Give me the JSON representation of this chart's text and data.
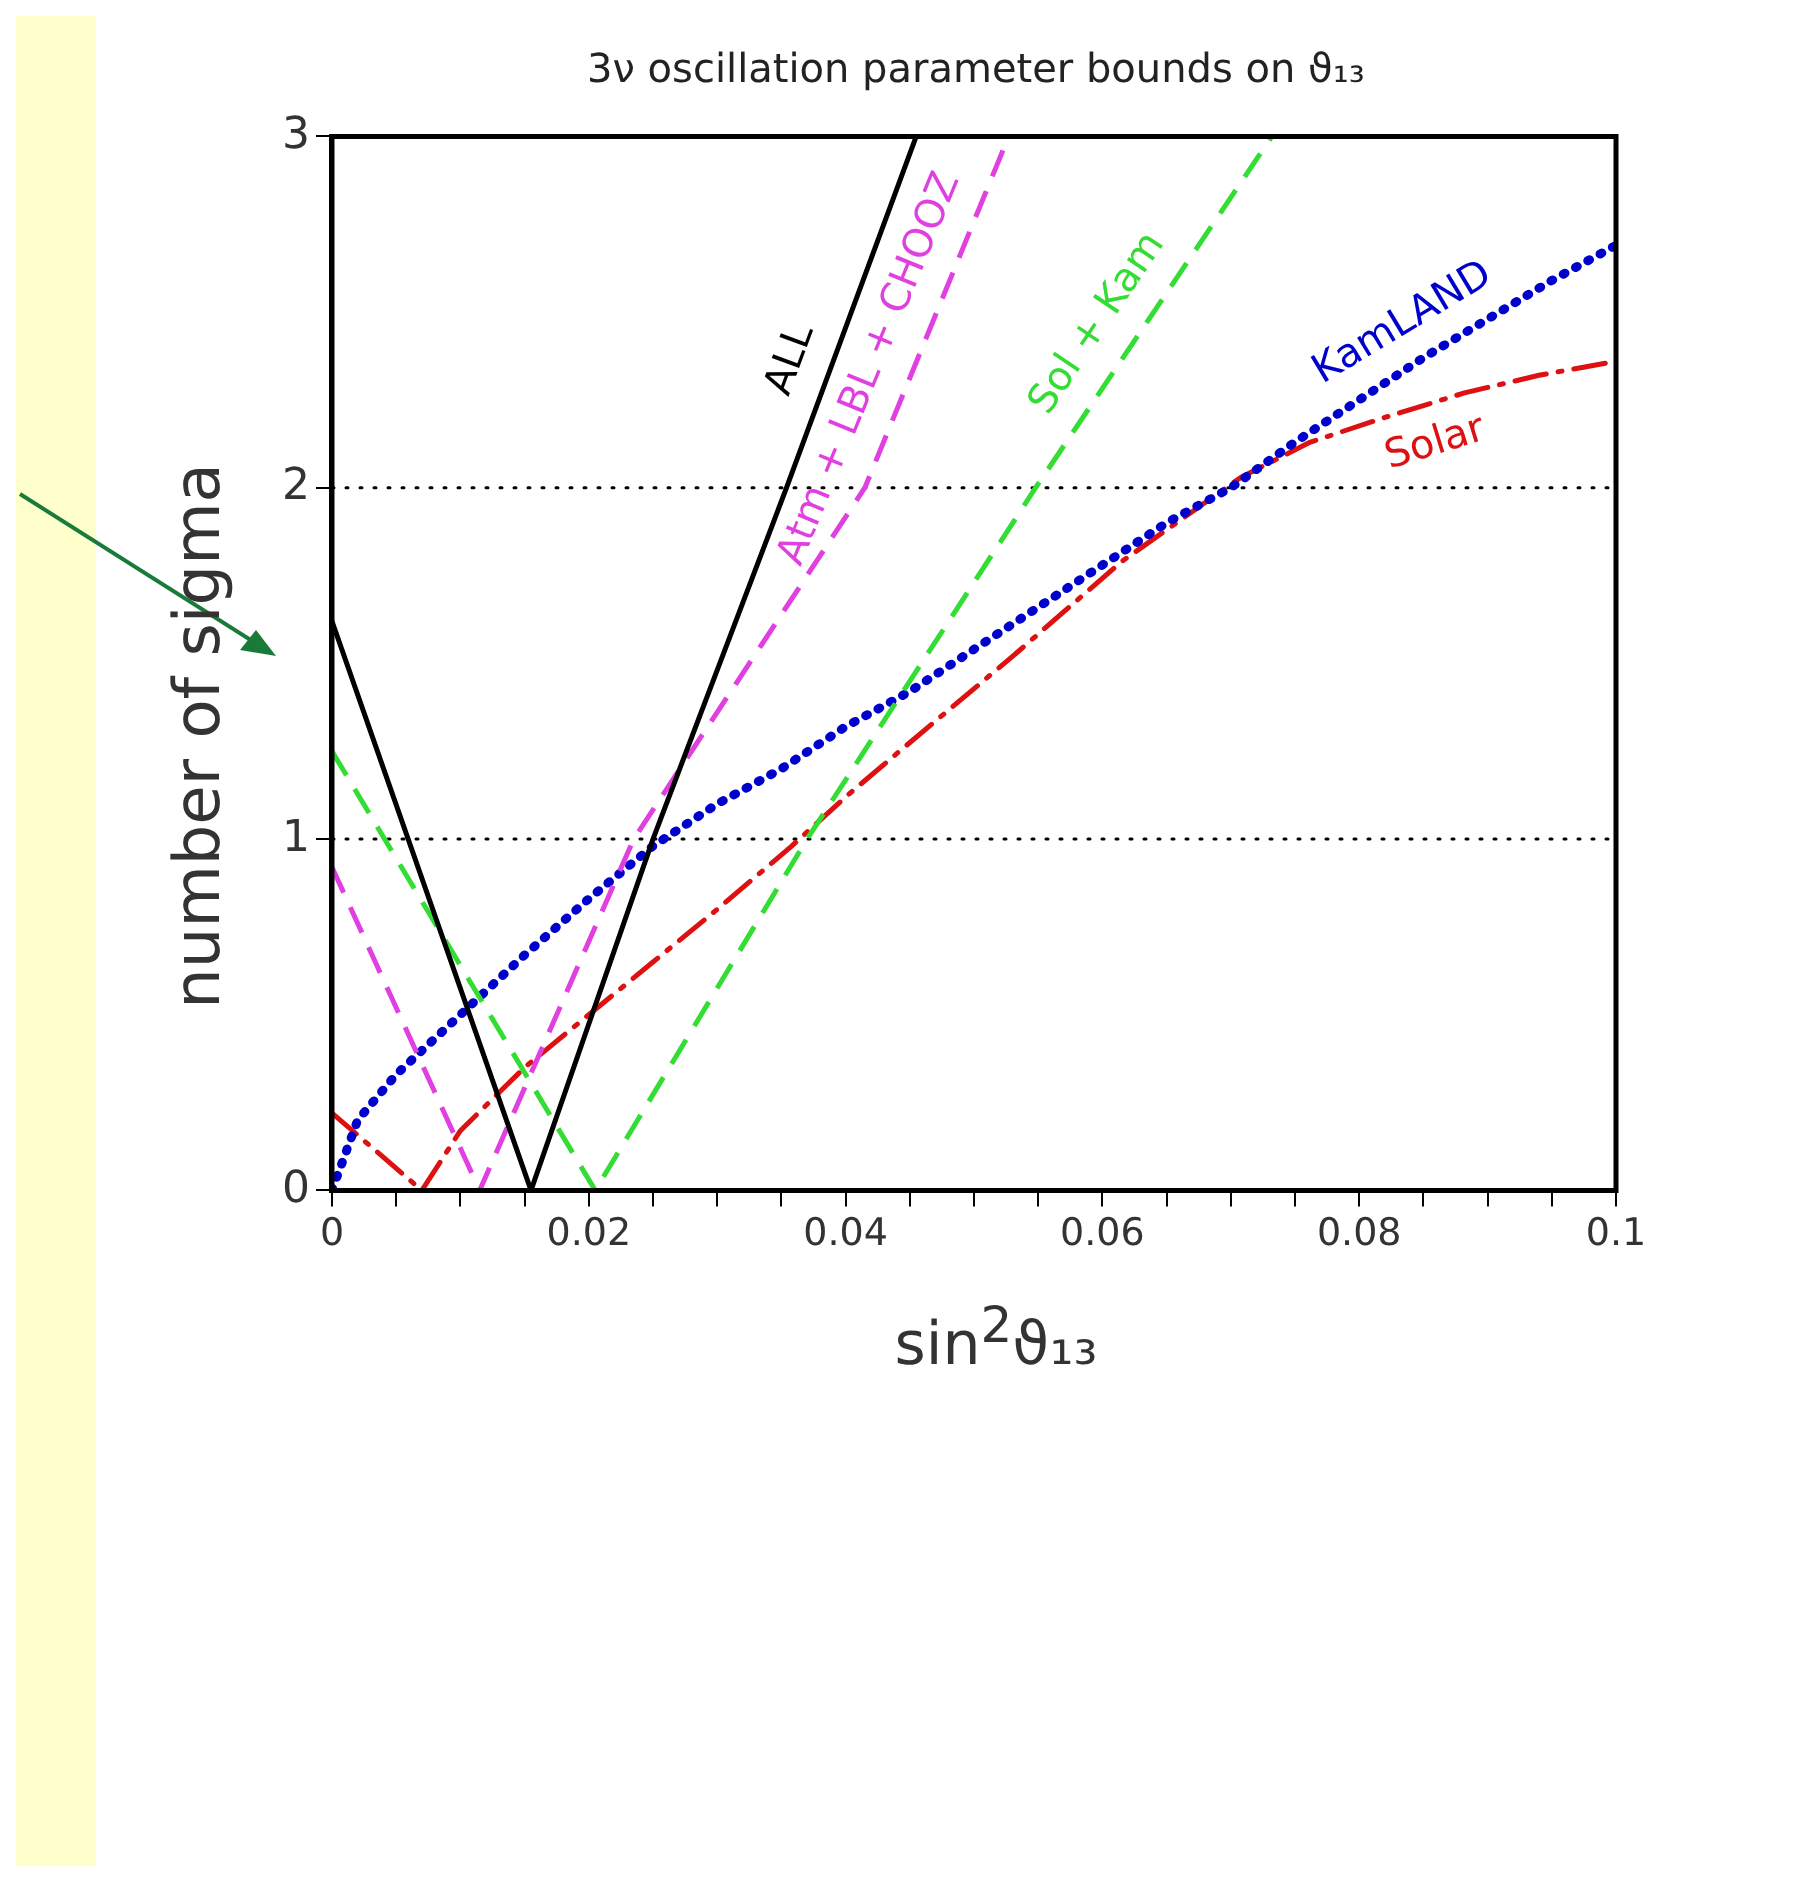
{
  "chart_data": {
    "type": "line",
    "title": "3ν oscillation parameter bounds on ϑ₁₃",
    "xlabel": "sin$^{2}$ϑ₁₃",
    "ylabel": "number of sigma",
    "xlim": [
      0,
      0.1
    ],
    "xticks": [
      0,
      {
        "value": 0.005,
        "label": null
      },
      0.02,
      {
        "value": 0.01,
        "label": null
      },
      {
        "value": 0.015,
        "label": null
      },
      {
        "value": 0.025,
        "label": null
      },
      {
        "value": 0.03,
        "label": null
      },
      {
        "value": 0.035,
        "label": null
      },
      0.04,
      {
        "value": 0.045,
        "label": null
      },
      {
        "value": 0.05,
        "label": null
      },
      {
        "value": 0.055,
        "label": null
      },
      0.06,
      {
        "value": 0.065,
        "label": null
      },
      {
        "value": 0.07,
        "label": null
      },
      {
        "value": 0.075,
        "label": null
      },
      0.08,
      {
        "value": 0.085,
        "label": null
      },
      {
        "value": 0.09,
        "label": null
      },
      {
        "value": 0.095,
        "label": null
      },
      0.1
    ],
    "ylim": [
      0,
      3
    ],
    "yticks": [
      0,
      1,
      2,
      3
    ],
    "ref_lines": [
      {
        "axis": "y",
        "value": 1,
        "line_style": "dotted",
        "color": "#000000"
      },
      {
        "axis": "y",
        "value": 2,
        "line_style": "dotted",
        "color": "#000000"
      }
    ],
    "marker": "none",
    "legend": false,
    "series": [
      {
        "name": "ALL",
        "color": "#000000",
        "line_style": "solid",
        "x": [
          0,
          0.0155,
          0.025,
          0.0354,
          0.0455
        ],
        "values": [
          1.62,
          0,
          1,
          2,
          3
        ]
      },
      {
        "name": "Atm + LBL + CHOOZ",
        "color": "#e040e0",
        "line_style": "dashed",
        "x": [
          0,
          0.0115,
          0.0235,
          0.0415,
          0.0527
        ],
        "values": [
          0.92,
          0,
          1,
          2,
          3
        ]
      },
      {
        "name": "Sol + Kam",
        "color": "#33dd33",
        "line_style": "dashed",
        "x": [
          0,
          0.0205,
          0.037,
          0.0548,
          0.0732
        ],
        "values": [
          1.25,
          0,
          1,
          2,
          3
        ]
      },
      {
        "name": "KamLAND",
        "color": "#0000cc",
        "line_style": "dotted",
        "x": [
          0,
          0.002,
          0.005,
          0.01,
          0.015,
          0.02,
          0.025,
          0.03,
          0.035,
          0.04,
          0.045,
          0.05,
          0.055,
          0.06,
          0.065,
          0.07,
          0.075,
          0.08,
          0.085,
          0.09,
          0.095,
          0.1
        ],
        "values": [
          0,
          0.2,
          0.33,
          0.5,
          0.67,
          0.83,
          0.98,
          1.1,
          1.2,
          1.32,
          1.42,
          1.54,
          1.66,
          1.78,
          1.9,
          2.0,
          2.13,
          2.25,
          2.37,
          2.48,
          2.59,
          2.69
        ]
      },
      {
        "name": "Solar",
        "color": "#dd1111",
        "line_style": "dashdot",
        "x": [
          0,
          0.007,
          0.01,
          0.015,
          0.02,
          0.025,
          0.03,
          0.0358,
          0.04,
          0.0442,
          0.053,
          0.0615,
          0.0708,
          0.0762,
          0.082,
          0.0882,
          0.094,
          0.1
        ],
        "values": [
          0.22,
          0,
          0.17,
          0.35,
          0.5,
          0.65,
          0.8,
          0.98,
          1.12,
          1.25,
          1.52,
          1.79,
          2.03,
          2.13,
          2.2,
          2.27,
          2.32,
          2.36
        ]
      }
    ]
  }
}
